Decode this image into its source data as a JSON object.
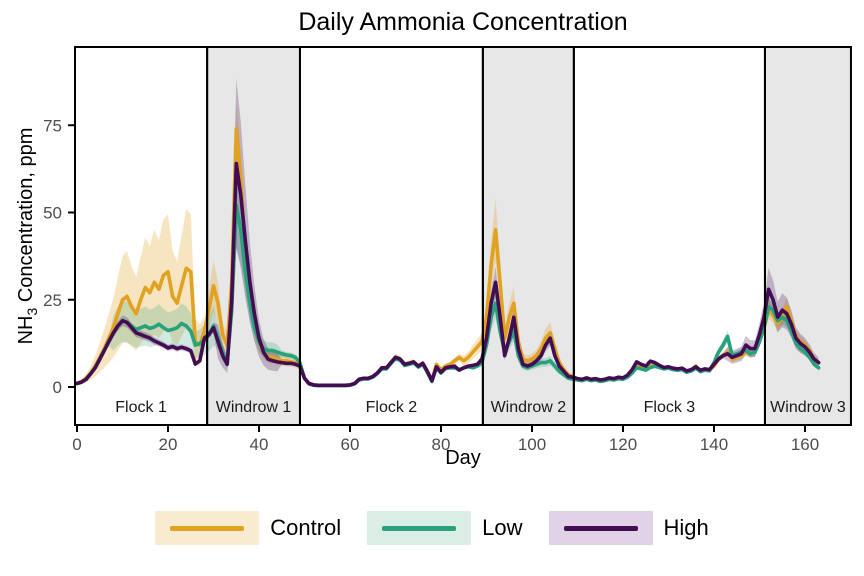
{
  "title": {
    "text": "Daily Ammonia Concentration"
  },
  "chart_data": {
    "type": "line",
    "title": "Daily Ammonia Concentration",
    "xlabel": "Day",
    "ylabel": "NH3 Concentration, ppm",
    "ylabel_parts": {
      "prefix": "NH",
      "sub": "3",
      "suffix": " Concentration, ppm"
    },
    "x_ticks": [
      0,
      20,
      40,
      60,
      80,
      100,
      120,
      140,
      160
    ],
    "y_ticks": [
      0,
      25,
      50,
      75
    ],
    "xlim": [
      -0.5,
      170
    ],
    "ylim": [
      0,
      97
    ],
    "grid": false,
    "legend_position": "bottom",
    "day_start": 0,
    "day_step": 1,
    "panel_fill_shaded": "#E7E7E7",
    "panel_fill_plain": "#FFFFFF",
    "panel_border": "#000000",
    "tick_label_color": "#4D4D4D",
    "text_color": "#000000",
    "band_min": 0.3,
    "panels": [
      {
        "label": "Flock 1",
        "start": -0.44,
        "end": 28.6,
        "shaded": false
      },
      {
        "label": "Windrow 1",
        "start": 28.6,
        "end": 49.0,
        "shaded": true
      },
      {
        "label": "Flock 2",
        "start": 49.0,
        "end": 89.2,
        "shaded": false
      },
      {
        "label": "Windrow 2",
        "start": 89.2,
        "end": 109.2,
        "shaded": true
      },
      {
        "label": "Flock 3",
        "start": 109.2,
        "end": 151.2,
        "shaded": false
      },
      {
        "label": "Windrow 3",
        "start": 151.2,
        "end": 170.1,
        "shaded": true
      }
    ],
    "series": [
      {
        "name": "Control",
        "color": "#E2A221",
        "key_bg": "#F9EBCF",
        "ribbon_opacity": 0.28,
        "band_default": 0.12,
        "band_rules": [
          [
            0,
            28,
            0.5
          ],
          [
            28,
            34,
            0.25
          ],
          [
            34,
            40,
            0.1
          ],
          [
            40,
            50,
            0.2
          ],
          [
            85,
            109,
            0.2
          ]
        ],
        "values": [
          1,
          1.5,
          2.5,
          4,
          6,
          8.5,
          11,
          14,
          17,
          21,
          25,
          26,
          23,
          21,
          25,
          28.5,
          27,
          30,
          28,
          32,
          33,
          26,
          24,
          29,
          34,
          33,
          13,
          12,
          16,
          22,
          29,
          24,
          15,
          12,
          30,
          74,
          60,
          38,
          27,
          18,
          13,
          10,
          8.5,
          8.5,
          8,
          7.5,
          7.5,
          7.2,
          7,
          6,
          2.5,
          1,
          0.6,
          0.5,
          0.5,
          0.5,
          0.5,
          0.5,
          0.5,
          0.5,
          0.6,
          1,
          2.2,
          2.5,
          2.5,
          3,
          4,
          5.5,
          5.5,
          7,
          8.5,
          8,
          6.5,
          6.8,
          7.2,
          6,
          6.8,
          4.5,
          1.8,
          6.5,
          5,
          6,
          6.5,
          7.5,
          8.5,
          7.5,
          8.5,
          10,
          11.5,
          13,
          20,
          35,
          45,
          30,
          14,
          20,
          24,
          13,
          8,
          7.5,
          8,
          9,
          11,
          14,
          15.5,
          11,
          7,
          5,
          3.5,
          3,
          2.2,
          2,
          2.4,
          2,
          2.2,
          1.8,
          2,
          2.4,
          2.2,
          2.6,
          2.4,
          3,
          4.2,
          6,
          5.5,
          5,
          6,
          6.4,
          5.8,
          5.4,
          5.6,
          5.2,
          5,
          5.2,
          4.4,
          4.8,
          6,
          4.6,
          5,
          4.8,
          6,
          8,
          9,
          10,
          8,
          8.5,
          9,
          10,
          9.5,
          10,
          13,
          17,
          22,
          21,
          18,
          20,
          23,
          19,
          14.5,
          13,
          12,
          10.5,
          8,
          7
        ]
      },
      {
        "name": "Low",
        "color": "#28A17C",
        "key_bg": "#DAEEE5",
        "ribbon_opacity": 0.22,
        "band_default": 0.1,
        "band_rules": [
          [
            8,
            31,
            0.32
          ],
          [
            31,
            44,
            0.22
          ],
          [
            89,
            109,
            0.18
          ],
          [
            140,
            150,
            0.12
          ]
        ],
        "values": [
          1,
          1.4,
          2.2,
          3.8,
          5.5,
          8,
          10.5,
          13,
          15.5,
          17.5,
          19,
          18.5,
          17.5,
          16.5,
          17,
          17.5,
          16.8,
          17.2,
          18,
          17,
          16.2,
          16.5,
          17,
          18.2,
          17.5,
          16,
          12,
          12.5,
          13.5,
          15,
          17.5,
          14,
          10,
          7,
          22,
          52,
          45,
          33,
          24,
          17,
          13,
          11,
          10.5,
          10.5,
          10,
          9.5,
          9.2,
          9,
          8.5,
          7,
          2.5,
          0.9,
          0.5,
          0.4,
          0.4,
          0.4,
          0.4,
          0.4,
          0.4,
          0.4,
          0.5,
          0.9,
          2,
          2.3,
          2.3,
          2.8,
          3.8,
          5.2,
          5.2,
          6.7,
          8.2,
          7.7,
          6.2,
          6.5,
          6.9,
          5.7,
          6.5,
          4.2,
          1.6,
          5.5,
          4,
          5.3,
          5.5,
          5.5,
          5,
          5.5,
          5.8,
          5.5,
          6,
          7,
          12,
          20,
          24,
          16,
          10,
          13,
          16,
          9,
          6,
          5.5,
          6,
          6.5,
          7,
          7,
          7.5,
          6,
          4.5,
          3.5,
          2.5,
          2.2,
          2,
          1.8,
          2.2,
          1.8,
          2,
          1.6,
          1.8,
          2.2,
          2,
          2.4,
          2.2,
          2.8,
          4,
          5.5,
          5.2,
          4.8,
          5.6,
          6,
          5.6,
          5.2,
          5.4,
          5,
          4.8,
          5,
          4.2,
          4.6,
          5.4,
          4.4,
          4.8,
          4.6,
          7,
          10,
          12,
          14.5,
          9,
          9.5,
          10,
          10.5,
          9.5,
          10,
          13,
          17,
          23,
          22,
          19,
          20,
          19,
          16,
          12.5,
          11,
          10,
          8.5,
          6.5,
          5.5
        ]
      },
      {
        "name": "High",
        "color": "#430D54",
        "key_bg": "#E2D2E7",
        "ribbon_opacity": 0.25,
        "band_default": 0.08,
        "band_rules": [
          [
            31,
            44,
            0.38
          ],
          [
            89,
            109,
            0.15
          ],
          [
            143,
            163,
            0.22
          ]
        ],
        "values": [
          1,
          1.4,
          2.2,
          3.8,
          5.5,
          8,
          10.5,
          13,
          15.5,
          17.5,
          19,
          18.5,
          17,
          15.5,
          15,
          14.5,
          14,
          13.2,
          12.6,
          12,
          11.2,
          11.6,
          11,
          11.4,
          11,
          10.4,
          6.6,
          7.5,
          14,
          15,
          17,
          13,
          9,
          6.5,
          25,
          64,
          55,
          42,
          30,
          21,
          14,
          10,
          8,
          7.5,
          7.2,
          7,
          6.8,
          6.8,
          6.5,
          6,
          2.5,
          1,
          0.6,
          0.5,
          0.5,
          0.5,
          0.5,
          0.5,
          0.5,
          0.5,
          0.6,
          1,
          2.2,
          2.5,
          2.5,
          3,
          4,
          5.5,
          5.5,
          7,
          8.5,
          8,
          6.5,
          6.8,
          7.2,
          6,
          6.8,
          4.5,
          1.8,
          5.8,
          4.2,
          5.5,
          5.8,
          6,
          4.8,
          5.5,
          6,
          6.2,
          6.5,
          8,
          14,
          24,
          30,
          20,
          9,
          14,
          20,
          11,
          6.5,
          6,
          6.5,
          7.5,
          9,
          12,
          14,
          9,
          6,
          4.5,
          3,
          2.8,
          2.4,
          2.2,
          2.6,
          2.2,
          2.4,
          2,
          2.2,
          2.6,
          2.4,
          2.8,
          2.6,
          3.4,
          5,
          7.2,
          6.5,
          6,
          7.4,
          7,
          6.2,
          5.6,
          5.8,
          5.4,
          5.2,
          5.4,
          4.6,
          5,
          5.8,
          4.8,
          5.2,
          5,
          6.5,
          8,
          9,
          9.5,
          8.5,
          9,
          9.5,
          12,
          11,
          11,
          15,
          20,
          28,
          25,
          20,
          22,
          21,
          18,
          14,
          12.5,
          11.5,
          10,
          8,
          7
        ]
      }
    ]
  }
}
